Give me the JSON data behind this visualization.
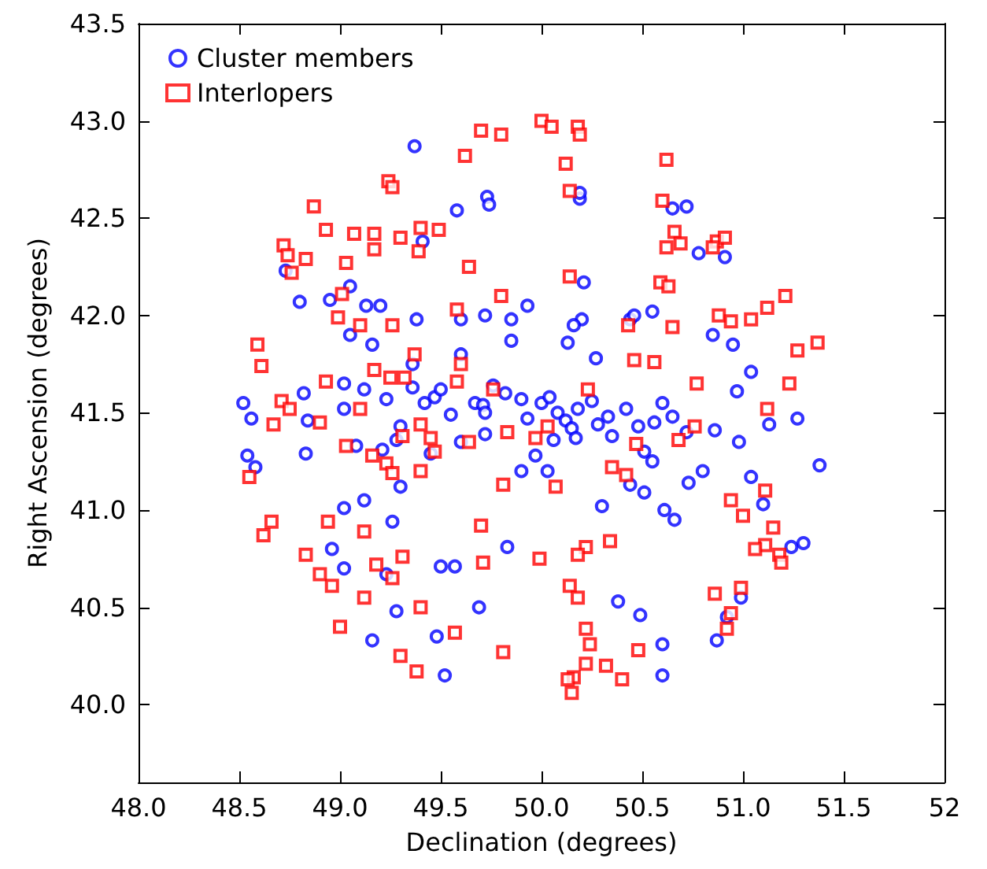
{
  "chart_data": {
    "type": "scatter",
    "xlabel": "Declination (degrees)",
    "ylabel": "Right Ascension (degrees)",
    "xlim": [
      48,
      52
    ],
    "ylim": [
      39.6,
      43.5
    ],
    "xticks": [
      {
        "value": 48,
        "label": "48.0"
      },
      48.5,
      {
        "value": 49,
        "label": "49.0"
      },
      49.5,
      {
        "value": 50,
        "label": "50.0"
      },
      50.5,
      {
        "value": 51,
        "label": "51.0"
      },
      51.5,
      52
    ],
    "yticks": [
      {
        "value": 40,
        "label": "40.0"
      },
      40.5,
      {
        "value": 41,
        "label": "41.0"
      },
      41.5,
      {
        "value": 42,
        "label": "42.0"
      },
      42.5,
      {
        "value": 43,
        "label": "43.0"
      },
      43.5
    ],
    "grid": false,
    "legend": "top left",
    "series": [
      {
        "name": "Cluster members",
        "color": "#0000ff",
        "marker": "circle",
        "x": [
          49.37,
          49.58,
          49.73,
          49.74,
          50.19,
          50.19,
          50.72,
          49.41,
          48.73,
          48.8,
          49.05,
          49.13,
          49.2,
          49.38,
          49.72,
          49.93,
          50.21,
          50.55,
          50.78,
          50.91,
          50.65,
          50.2,
          49.6,
          49.85,
          50.16,
          50.44,
          50.46,
          50.85,
          50.95,
          51.04,
          48.95,
          49.05,
          49.02,
          49.12,
          48.52,
          48.56,
          48.54,
          48.58,
          48.82,
          48.84,
          48.83,
          49.02,
          49.23,
          49.3,
          49.28,
          49.08,
          49.21,
          49.42,
          49.47,
          49.5,
          49.55,
          49.6,
          49.67,
          49.71,
          49.72,
          49.76,
          49.82,
          49.9,
          49.93,
          50,
          50.04,
          50.08,
          50.12,
          50.15,
          50.17,
          50.18,
          50.25,
          50.28,
          50.33,
          50.42,
          50.48,
          50.56,
          50.6,
          50.65,
          50.72,
          50.55,
          50.51,
          50.61,
          50.66,
          50.73,
          50.86,
          50.97,
          50.98,
          51.04,
          51.1,
          51.38,
          51.13,
          51.27,
          51.3,
          51.24,
          50.99,
          50.92,
          50.87,
          50.49,
          50.6,
          50.6,
          50.38,
          49.52,
          49.48,
          49.69,
          49.57,
          49.5,
          49.83,
          49.28,
          49.23,
          49.16,
          48.96,
          49.02,
          49.02,
          49.26,
          49.12,
          49.3,
          49.45,
          49.36,
          49.72,
          50.06,
          49.9,
          49.97,
          50.03,
          50.3,
          50.51,
          50.44,
          50.35,
          50.8,
          49.6,
          49.85,
          50.13,
          50.27,
          49.36,
          49.16
        ],
        "values": [
          42.87,
          42.54,
          42.61,
          42.57,
          42.6,
          42.63,
          42.56,
          42.38,
          42.23,
          42.07,
          42.15,
          42.05,
          42.05,
          41.98,
          42,
          42.05,
          42.17,
          42.02,
          42.32,
          42.3,
          42.55,
          41.98,
          41.98,
          41.98,
          41.95,
          41.98,
          42,
          41.9,
          41.85,
          41.71,
          42.08,
          41.9,
          41.65,
          41.62,
          41.55,
          41.47,
          41.28,
          41.22,
          41.6,
          41.46,
          41.29,
          41.52,
          41.57,
          41.43,
          41.36,
          41.33,
          41.31,
          41.55,
          41.58,
          41.62,
          41.49,
          41.35,
          41.55,
          41.54,
          41.5,
          41.64,
          41.6,
          41.57,
          41.47,
          41.55,
          41.58,
          41.5,
          41.46,
          41.42,
          41.37,
          41.52,
          41.56,
          41.44,
          41.48,
          41.52,
          41.43,
          41.45,
          41.55,
          41.48,
          41.4,
          41.25,
          41.3,
          41,
          40.95,
          41.14,
          41.41,
          41.61,
          41.35,
          41.17,
          41.03,
          41.23,
          41.44,
          41.47,
          40.83,
          40.81,
          40.55,
          40.45,
          40.33,
          40.46,
          40.31,
          40.15,
          40.53,
          40.15,
          40.35,
          40.5,
          40.71,
          40.71,
          40.81,
          40.48,
          40.67,
          40.33,
          40.8,
          41.01,
          40.7,
          40.94,
          41.05,
          41.12,
          41.29,
          41.63,
          41.39,
          41.36,
          41.2,
          41.28,
          41.2,
          41.02,
          41.09,
          41.13,
          41.38,
          41.2,
          41.8,
          41.87,
          41.86,
          41.78,
          41.75,
          41.85
        ]
      },
      {
        "name": "Interlopers",
        "color": "#ff0000",
        "marker": "square",
        "x": [
          50,
          50.05,
          50.18,
          50.19,
          49.8,
          49.7,
          50.12,
          49.62,
          50.62,
          49.24,
          49.26,
          50.14,
          48.87,
          50.6,
          49.4,
          49.49,
          48.72,
          48.74,
          48.93,
          49.07,
          49.17,
          49.3,
          50.66,
          50.62,
          50.69,
          50.87,
          50.91,
          50.85,
          48.83,
          48.76,
          49.03,
          49.17,
          49.39,
          48.99,
          49.01,
          49.1,
          49.26,
          49.64,
          49.58,
          49.8,
          50.14,
          50.43,
          50.59,
          50.63,
          50.65,
          50.88,
          50.94,
          51.04,
          51.12,
          51.21,
          51.27,
          51.37,
          48.59,
          48.61,
          48.71,
          48.67,
          48.55,
          48.93,
          49.17,
          49.25,
          49.32,
          49.37,
          49.6,
          49.58,
          49.76,
          50.23,
          50.46,
          50.56,
          50.77,
          51.12,
          51.23,
          48.75,
          49.03,
          49.1,
          49.16,
          49.23,
          49.31,
          49.45,
          49.47,
          49.4,
          49.26,
          48.9,
          49.4,
          49.64,
          49.83,
          50.03,
          49.97,
          49.81,
          49.7,
          50.07,
          50.35,
          50.42,
          50.47,
          50.68,
          50.76,
          50.94,
          51.11,
          51,
          51.15,
          51.11,
          51.06,
          51.18,
          51.19,
          50.99,
          48.62,
          48.66,
          48.83,
          48.94,
          48.9,
          48.96,
          49.12,
          49.18,
          49.31,
          49.26,
          49.4,
          49.12,
          49,
          49.3,
          49.38,
          49.57,
          49.81,
          49.71,
          49.99,
          50.22,
          50.18,
          50.34,
          50.14,
          50.18,
          50.22,
          50.24,
          50.22,
          50.32,
          50.16,
          50.13,
          50.15,
          50.4,
          50.48,
          50.92,
          50.94,
          50.86
        ],
        "values": [
          43,
          42.97,
          42.97,
          42.93,
          42.93,
          42.95,
          42.78,
          42.82,
          42.8,
          42.69,
          42.66,
          42.64,
          42.56,
          42.59,
          42.45,
          42.44,
          42.36,
          42.31,
          42.44,
          42.42,
          42.42,
          42.4,
          42.43,
          42.35,
          42.37,
          42.38,
          42.4,
          42.35,
          42.29,
          42.22,
          42.27,
          42.34,
          42.33,
          41.99,
          42.11,
          41.95,
          41.95,
          42.25,
          42.03,
          42.1,
          42.2,
          41.95,
          42.17,
          42.15,
          41.94,
          42,
          41.97,
          41.98,
          42.04,
          42.1,
          41.82,
          41.86,
          41.85,
          41.74,
          41.56,
          41.44,
          41.17,
          41.66,
          41.72,
          41.68,
          41.68,
          41.8,
          41.75,
          41.66,
          41.62,
          41.62,
          41.77,
          41.76,
          41.65,
          41.52,
          41.65,
          41.52,
          41.33,
          41.52,
          41.28,
          41.24,
          41.38,
          41.37,
          41.3,
          41.2,
          41.19,
          41.45,
          41.44,
          41.35,
          41.4,
          41.43,
          41.37,
          41.13,
          40.92,
          41.12,
          41.22,
          41.18,
          41.34,
          41.36,
          41.43,
          41.05,
          41.1,
          40.97,
          40.91,
          40.82,
          40.8,
          40.77,
          40.73,
          40.6,
          40.87,
          40.94,
          40.77,
          40.94,
          40.67,
          40.61,
          40.89,
          40.72,
          40.76,
          40.65,
          40.5,
          40.55,
          40.4,
          40.25,
          40.17,
          40.37,
          40.27,
          40.73,
          40.75,
          40.81,
          40.77,
          40.84,
          40.61,
          40.55,
          40.39,
          40.31,
          40.21,
          40.2,
          40.14,
          40.13,
          40.06,
          40.13,
          40.28,
          40.39,
          40.47,
          40.57
        ]
      }
    ]
  }
}
